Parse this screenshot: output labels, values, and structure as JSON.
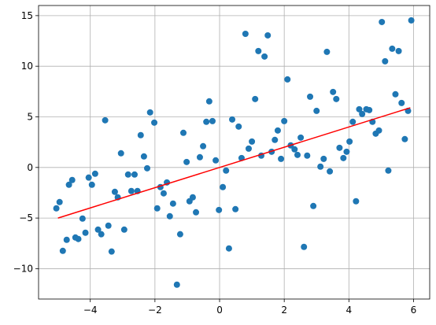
{
  "chart_data": {
    "type": "scatter",
    "xlim": [
      -5.6,
      6.5
    ],
    "ylim": [
      -13,
      16
    ],
    "xticks": [
      {
        "value": -4,
        "label": "−4"
      },
      {
        "value": -2,
        "label": "−2"
      },
      0,
      2,
      4,
      6
    ],
    "yticks": [
      {
        "value": -10,
        "label": "−10"
      },
      {
        "value": -5,
        "label": "−5"
      },
      0,
      5,
      10,
      15
    ],
    "grid": true,
    "series": [
      {
        "type": "scatter",
        "color": "#1f77b4",
        "x": [
          -5.05,
          -4.95,
          -4.85,
          -4.73,
          -4.66,
          -4.56,
          -4.46,
          -4.37,
          -4.24,
          -4.15,
          -4.05,
          -3.95,
          -3.85,
          -3.76,
          -3.66,
          -3.54,
          -3.44,
          -3.34,
          -3.24,
          -3.15,
          -3.05,
          -2.95,
          -2.83,
          -2.73,
          -2.63,
          -2.54,
          -2.44,
          -2.34,
          -2.24,
          -2.15,
          -2.02,
          -1.93,
          -1.83,
          -1.73,
          -1.63,
          -1.54,
          -1.44,
          -1.32,
          -1.22,
          -1.12,
          -1.02,
          -0.93,
          -0.83,
          -0.73,
          -0.61,
          -0.51,
          -0.41,
          -0.32,
          -0.22,
          -0.12,
          -0.02,
          0.1,
          0.2,
          0.29,
          0.39,
          0.49,
          0.59,
          0.68,
          0.8,
          0.9,
          1.0,
          1.1,
          1.2,
          1.29,
          1.39,
          1.49,
          1.61,
          1.71,
          1.8,
          1.9,
          2.0,
          2.1,
          2.2,
          2.32,
          2.41,
          2.51,
          2.61,
          2.71,
          2.8,
          2.9,
          3.0,
          3.12,
          3.22,
          3.32,
          3.41,
          3.51,
          3.61,
          3.71,
          3.83,
          3.93,
          4.02,
          4.12,
          4.22,
          4.32,
          4.41,
          4.54,
          4.63,
          4.73,
          4.83,
          4.93,
          5.02,
          5.12,
          5.22,
          5.34,
          5.44,
          5.54,
          5.63,
          5.73,
          5.83,
          5.93
        ],
        "values": [
          -4.04,
          -3.42,
          -8.24,
          -7.15,
          -1.71,
          -1.24,
          -6.92,
          -7.07,
          -5.05,
          -6.45,
          -1.0,
          -1.71,
          -0.62,
          -6.14,
          -6.6,
          4.66,
          -5.75,
          -8.31,
          -2.41,
          -2.95,
          1.4,
          -6.14,
          -0.7,
          -2.33,
          -0.7,
          -2.33,
          3.19,
          1.09,
          -0.08,
          5.44,
          4.43,
          -4.04,
          -1.94,
          -2.56,
          -1.48,
          -4.82,
          -3.57,
          -11.58,
          -6.6,
          3.42,
          0.54,
          -3.34,
          -2.95,
          -4.43,
          1.01,
          2.1,
          4.51,
          6.53,
          4.58,
          0.7,
          -4.2,
          -1.94,
          -0.31,
          -8.0,
          4.74,
          -4.12,
          4.04,
          0.93,
          13.2,
          1.86,
          2.56,
          6.76,
          11.5,
          1.17,
          10.96,
          13.05,
          1.55,
          2.72,
          3.65,
          0.85,
          4.58,
          8.7,
          2.18,
          1.79,
          1.24,
          2.95,
          -7.85,
          1.17,
          6.99,
          -3.81,
          5.59,
          0.08,
          0.85,
          11.42,
          -0.39,
          7.46,
          6.76,
          1.94,
          0.93,
          1.55,
          2.56,
          4.51,
          -3.34,
          5.75,
          5.28,
          5.75,
          5.67,
          4.51,
          3.34,
          3.65,
          14.37,
          10.49,
          -0.31,
          11.73,
          7.23,
          11.5,
          6.37,
          2.8,
          5.59,
          14.53
        ]
      },
      {
        "type": "line",
        "color": "#ff0000",
        "x": [
          -5.0,
          5.9
        ],
        "values": [
          -5.0,
          5.9
        ]
      }
    ]
  }
}
